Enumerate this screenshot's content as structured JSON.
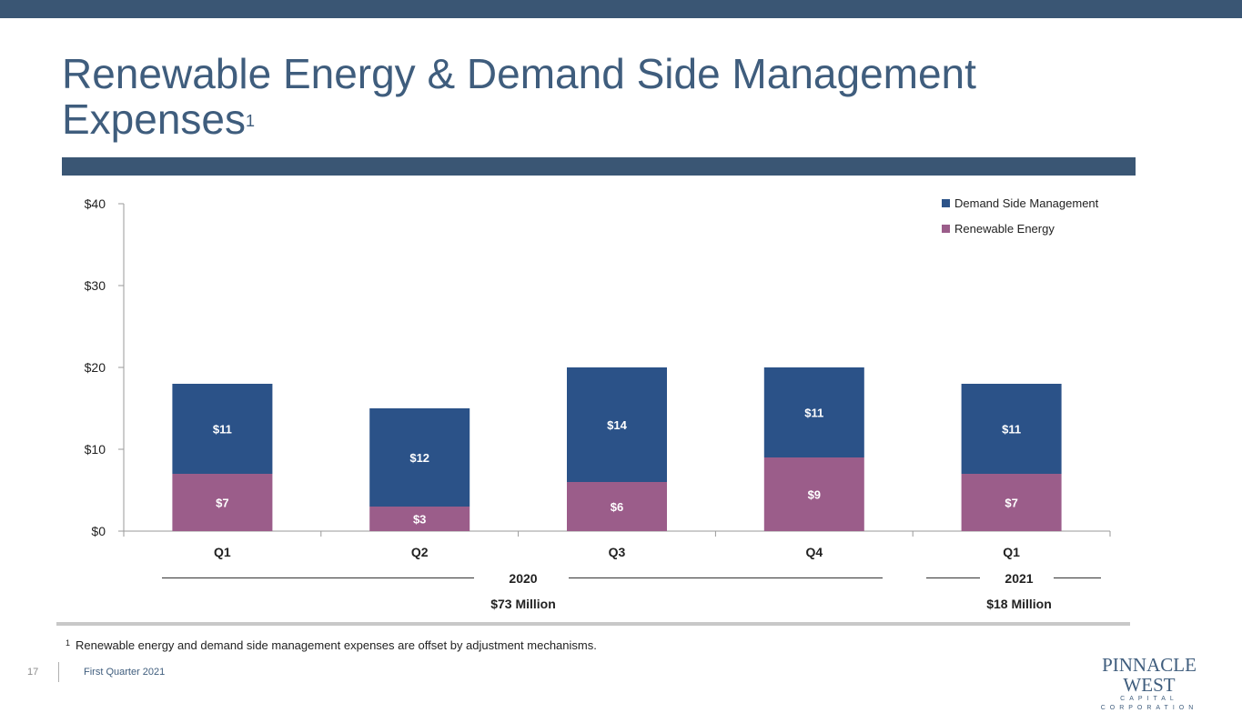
{
  "slide": {
    "title": "Renewable Energy & Demand Side Management Expenses",
    "title_sup": "1",
    "footnote_num": "1",
    "footnote": "Renewable energy and demand side management expenses are offset by adjustment mechanisms.",
    "page_number": "17",
    "footer": "First Quarter 2021",
    "logo_main": "PINNACLE WEST",
    "logo_sub": "CAPITAL CORPORATION"
  },
  "groups": {
    "g2020_label": "2020",
    "g2020_total": "$73 Million",
    "g2021_label": "2021",
    "g2021_total": "$18 Million"
  },
  "colors": {
    "dsm": "#2b5288",
    "renewable": "#9b5d8a",
    "title": "#3f5d7d",
    "bars_header": "#3a5674"
  },
  "chart_data": {
    "type": "bar",
    "stacked": true,
    "categories": [
      "Q1",
      "Q2",
      "Q3",
      "Q4",
      "Q1"
    ],
    "series": [
      {
        "name": "Renewable Energy",
        "values": [
          7,
          3,
          6,
          9,
          7
        ],
        "labels": [
          "$7",
          "$3",
          "$6",
          "$9",
          "$7"
        ]
      },
      {
        "name": "Demand Side Management",
        "values": [
          11,
          12,
          14,
          11,
          11
        ],
        "labels": [
          "$11",
          "$12",
          "$14",
          "$11",
          "$11"
        ]
      }
    ],
    "ylim": [
      0,
      40
    ],
    "yticks": [
      0,
      10,
      20,
      30,
      40
    ],
    "ytick_labels": [
      "$0",
      "$10",
      "$20",
      "$30",
      "$40"
    ],
    "legend": [
      "Demand Side Management",
      "Renewable Energy"
    ],
    "legend_position": "top-right",
    "grid": false
  }
}
